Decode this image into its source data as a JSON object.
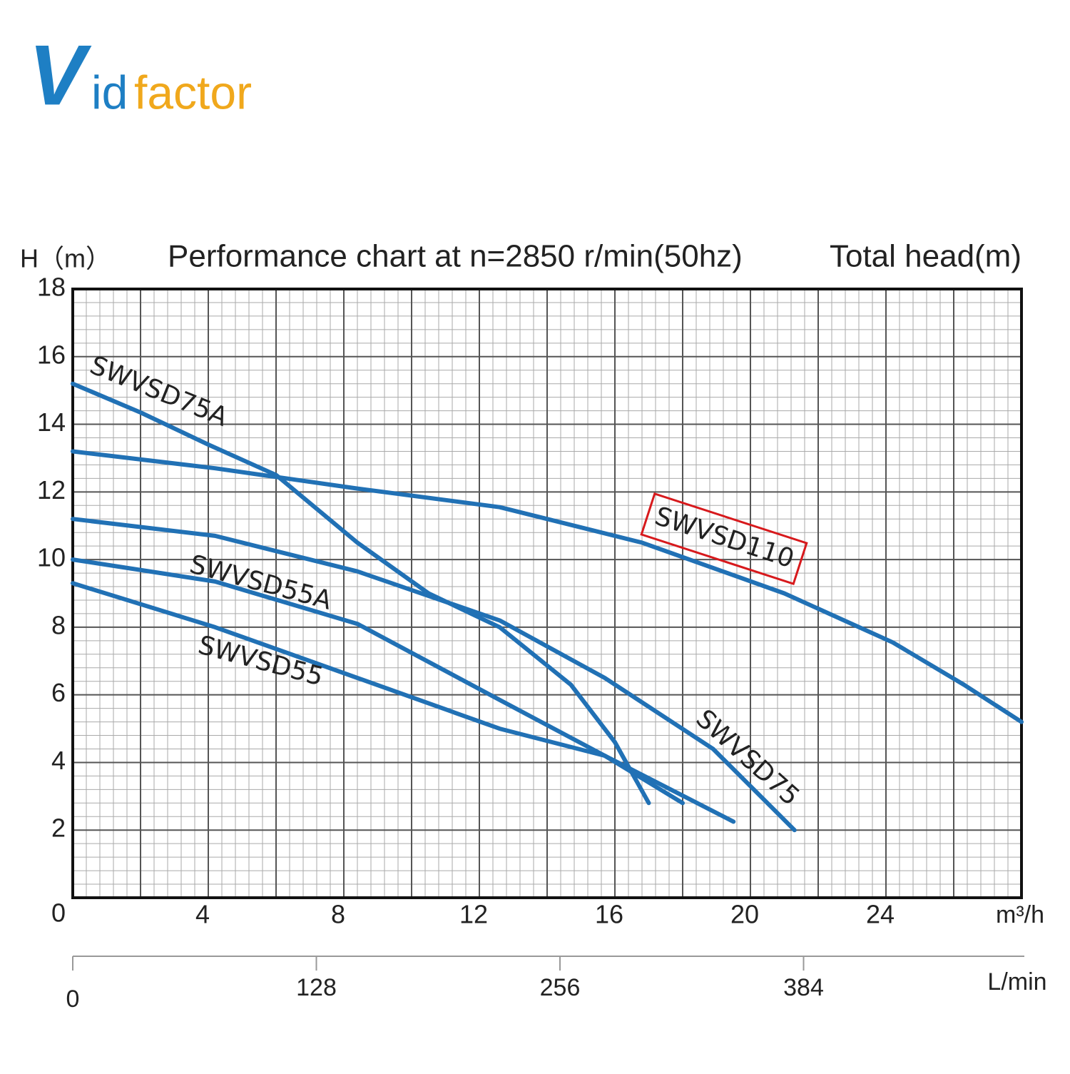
{
  "logo": [
    "V",
    "id",
    "factor"
  ],
  "chart_data": {
    "type": "line",
    "title": "Performance chart at n=2850 r/min(50hz)",
    "y_label": "H（m）",
    "y_label_right": "Total head(m)",
    "x_label": "m³/h",
    "x2_label": "L/min",
    "xlim": [
      0,
      28
    ],
    "xticks": [
      4,
      8,
      12,
      16,
      20,
      24
    ],
    "ylim": [
      0,
      18
    ],
    "yticks": [
      0,
      2,
      4,
      6,
      8,
      10,
      12,
      14,
      16,
      18
    ],
    "x2lim": [
      0,
      500
    ],
    "x2ticks": [
      0,
      128,
      256,
      384
    ],
    "grid": true,
    "series": [
      {
        "name": "SWVSD75A",
        "color": "#2171b5",
        "x": [
          0,
          2,
          4,
          6,
          8.4,
          10.5,
          12.6,
          14.7,
          16,
          17
        ],
        "values": [
          15.2,
          14.35,
          13.4,
          12.5,
          10.5,
          9.0,
          8.0,
          6.3,
          4.6,
          2.8
        ]
      },
      {
        "name": "SWVSD110",
        "color": "#2171b5",
        "x": [
          0,
          4.2,
          8.4,
          12.6,
          16.8,
          21,
          24.2,
          26.3,
          28
        ],
        "values": [
          13.2,
          12.7,
          12.1,
          11.55,
          10.5,
          9.0,
          7.55,
          6.3,
          5.2
        ]
      },
      {
        "name": "SWVSD75",
        "color": "#2171b5",
        "x": [
          0,
          4.2,
          8.4,
          12.6,
          15.7,
          18.9,
          21.3
        ],
        "values": [
          11.2,
          10.7,
          9.65,
          8.2,
          6.5,
          4.4,
          2.0
        ]
      },
      {
        "name": "SWVSD55A",
        "color": "#2171b5",
        "x": [
          0,
          4.2,
          8.4,
          12.6,
          15.7,
          19.5
        ],
        "values": [
          10.0,
          9.35,
          8.1,
          5.85,
          4.2,
          2.25
        ]
      },
      {
        "name": "SWVSD55",
        "color": "#2171b5",
        "x": [
          0,
          4.2,
          8.4,
          12.6,
          15.7,
          18
        ],
        "values": [
          9.3,
          8.0,
          6.5,
          5.0,
          4.2,
          2.8
        ]
      }
    ]
  }
}
